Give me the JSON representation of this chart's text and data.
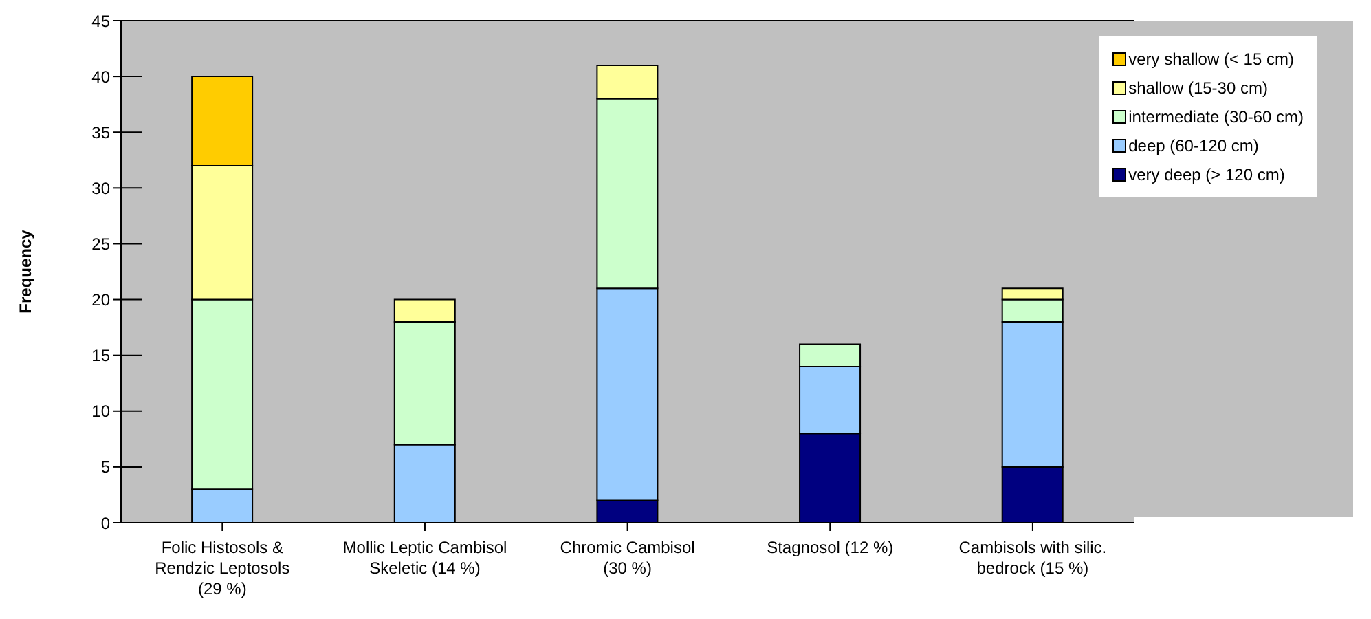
{
  "chart_data": {
    "type": "bar",
    "ylabel": "Frequency",
    "categories": [
      "Folic Histosols & Rendzic Leptosols (29 %)",
      "Mollic Leptic Cambisol Skeletic (14 %)",
      "Chromic Cambisol (30 %)",
      "Stagnosol (12 %)",
      "Cambisols with silic. bedrock (15 %)"
    ],
    "stacked": true,
    "series": [
      {
        "name": "very deep (> 120 cm)",
        "color": "#000080",
        "values": [
          0,
          0,
          2,
          8,
          5
        ]
      },
      {
        "name": "deep (60-120 cm)",
        "color": "#99ccff",
        "values": [
          3,
          7,
          19,
          6,
          13
        ]
      },
      {
        "name": "intermediate (30-60 cm)",
        "color": "#ccffcc",
        "values": [
          17,
          11,
          17,
          2,
          2
        ]
      },
      {
        "name": "shallow (15-30 cm)",
        "color": "#ffff99",
        "values": [
          12,
          2,
          3,
          0,
          1
        ]
      },
      {
        "name": "very shallow (< 15 cm)",
        "color": "#ffcc00",
        "values": [
          8,
          0,
          0,
          0,
          0
        ]
      }
    ],
    "ylim": [
      0,
      45
    ],
    "yticks": [
      0,
      5,
      10,
      15,
      20,
      25,
      30,
      35,
      40,
      45
    ],
    "grid": "y",
    "legend": "top right"
  }
}
